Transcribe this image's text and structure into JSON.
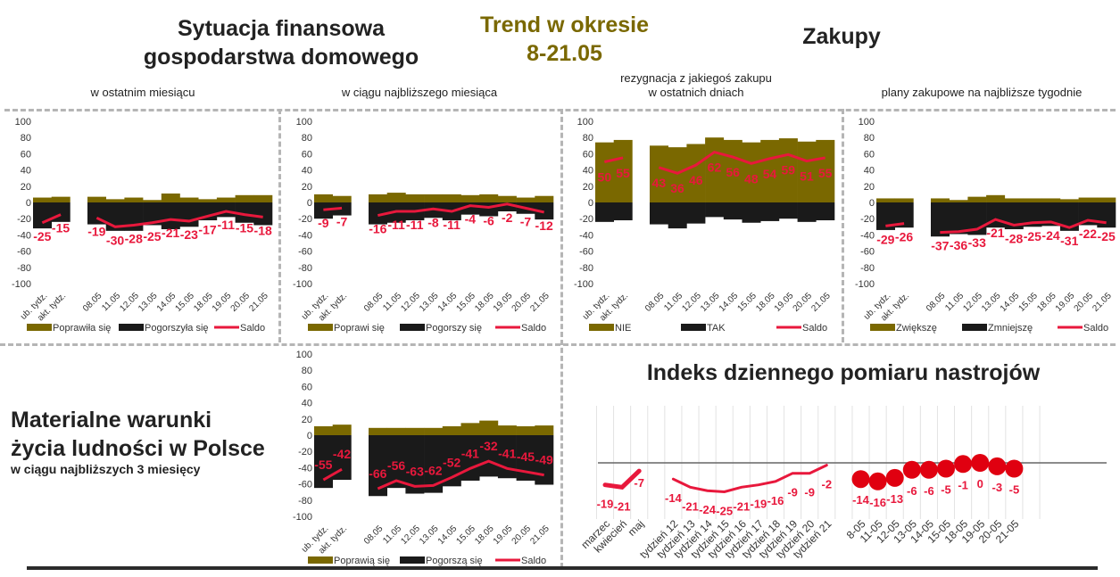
{
  "headers": {
    "finance_title": [
      "Sytuacja finansowa",
      "gospodarstwa domowego"
    ],
    "trend_title": [
      "Trend w okresie",
      "8-21.05"
    ],
    "purchases_title": "Zakupy",
    "material_title": [
      "Materialne warunki",
      "życia ludności w Polsce"
    ],
    "material_subtitle": "w ciągu najbliższych 3 miesięcy",
    "index_title": "Indeks dziennego pomiaru nastrojów"
  },
  "subtitles": [
    "w ostatnim miesiącu",
    "w ciągu najbliższego miesiąca",
    "rezygnacja z jakiegoś zakupu",
    "w ostatnich dniach",
    "plany zakupowe na najbliższe tygodnie"
  ],
  "colors": {
    "positive": "#7a6800",
    "negative": "#1a1a1a",
    "saldo": "#e8183c",
    "title": "#222222"
  },
  "chart_data": [
    {
      "type": "bar",
      "categories": [
        "ub. tydz.",
        "akt. tydz.",
        "08.05",
        "11.05",
        "12.05",
        "13.05",
        "14.05",
        "15.05",
        "18.05",
        "19.05",
        "20.05",
        "21.05"
      ],
      "ylim": [
        -100,
        100
      ],
      "yticks": [
        100,
        80,
        60,
        40,
        20,
        0,
        -20,
        -40,
        -60,
        -80,
        -100
      ],
      "series": [
        {
          "name": "Poprawiła się",
          "values": [
            6,
            7,
            7,
            4,
            6,
            3,
            11,
            6,
            4,
            6,
            9,
            9
          ]
        },
        {
          "name": "Pogorszyła się",
          "values": [
            -32,
            -24,
            -27,
            -35,
            -35,
            -28,
            -33,
            -30,
            -22,
            -18,
            -25,
            -28
          ]
        },
        {
          "name": "Saldo",
          "values": [
            -25,
            -15,
            -19,
            -30,
            -28,
            -25,
            -21,
            -23,
            -17,
            -11,
            -15,
            -18
          ]
        }
      ],
      "legend": "bottom"
    },
    {
      "type": "bar",
      "categories": [
        "ub. tydz.",
        "akt. tydz.",
        "08.05",
        "11.05",
        "12.05",
        "13.05",
        "14.05",
        "15.05",
        "18.05",
        "19.05",
        "20.05",
        "21.05"
      ],
      "ylim": [
        -100,
        100
      ],
      "yticks": [
        100,
        80,
        60,
        40,
        20,
        0,
        -20,
        -40,
        -60,
        -80,
        -100
      ],
      "series": [
        {
          "name": "Poprawi się",
          "values": [
            10,
            8,
            10,
            12,
            10,
            10,
            10,
            9,
            10,
            8,
            6,
            8
          ]
        },
        {
          "name": "Pogorszy się",
          "values": [
            -20,
            -16,
            -27,
            -25,
            -22,
            -19,
            -22,
            -15,
            -17,
            -11,
            -14,
            -21
          ]
        },
        {
          "name": "Saldo",
          "values": [
            -9,
            -7,
            -16,
            -11,
            -11,
            -8,
            -11,
            -4,
            -6,
            -2,
            -7,
            -12
          ]
        }
      ],
      "legend": "bottom"
    },
    {
      "type": "bar",
      "categories": [
        "ub. tydz.",
        "akt. tydz.",
        "08.05",
        "11.05",
        "12.05",
        "13.05",
        "14.05",
        "15.05",
        "18.05",
        "19.05",
        "20.05",
        "21.05"
      ],
      "ylim": [
        -100,
        100
      ],
      "yticks": [
        100,
        80,
        60,
        40,
        20,
        0,
        -20,
        -40,
        -60,
        -80,
        -100
      ],
      "series": [
        {
          "name": "NIE",
          "values": [
            74,
            77,
            70,
            68,
            72,
            80,
            77,
            74,
            77,
            79,
            75,
            77
          ]
        },
        {
          "name": "TAK",
          "values": [
            -24,
            -22,
            -27,
            -32,
            -26,
            -18,
            -21,
            -25,
            -23,
            -20,
            -24,
            -22
          ]
        },
        {
          "name": "Saldo",
          "values": [
            50,
            55,
            43,
            36,
            46,
            62,
            56,
            48,
            54,
            59,
            51,
            55
          ]
        }
      ],
      "legend": "bottom"
    },
    {
      "type": "bar",
      "categories": [
        "ub. tydz.",
        "akt. tydz.",
        "08.05",
        "11.05",
        "12.05",
        "13.05",
        "14.05",
        "15.05",
        "18.05",
        "19.05",
        "20.05",
        "21.05"
      ],
      "ylim": [
        -100,
        100
      ],
      "yticks": [
        100,
        80,
        60,
        40,
        20,
        0,
        -20,
        -40,
        -60,
        -80,
        -100
      ],
      "series": [
        {
          "name": "Zwiększę",
          "values": [
            5,
            5,
            5,
            3,
            7,
            9,
            5,
            5,
            5,
            4,
            6,
            6
          ]
        },
        {
          "name": "Zmniejszę",
          "values": [
            -34,
            -31,
            -42,
            -39,
            -40,
            -31,
            -33,
            -30,
            -29,
            -35,
            -28,
            -31
          ]
        },
        {
          "name": "Saldo",
          "values": [
            -29,
            -26,
            -37,
            -36,
            -33,
            -21,
            -28,
            -25,
            -24,
            -31,
            -22,
            -25
          ]
        }
      ],
      "legend": "bottom"
    },
    {
      "type": "bar",
      "categories": [
        "ub. tydz.",
        "akt. tydz.",
        "08.05",
        "11.05",
        "12.05",
        "13.05",
        "14.05",
        "15.05",
        "18.05",
        "19.05",
        "20.05",
        "21.05"
      ],
      "ylim": [
        -100,
        100
      ],
      "yticks": [
        100,
        80,
        60,
        40,
        20,
        0,
        -20,
        -40,
        -60,
        -80,
        -100
      ],
      "series": [
        {
          "name": "Poprawią się",
          "values": [
            11,
            13,
            9,
            9,
            9,
            9,
            11,
            15,
            18,
            12,
            11,
            12
          ]
        },
        {
          "name": "Pogorszą się",
          "values": [
            -65,
            -55,
            -75,
            -65,
            -72,
            -71,
            -63,
            -56,
            -51,
            -53,
            -56,
            -61
          ]
        },
        {
          "name": "Saldo",
          "values": [
            -55,
            -42,
            -66,
            -56,
            -63,
            -62,
            -52,
            -41,
            -32,
            -41,
            -45,
            -49
          ]
        }
      ],
      "legend": "bottom"
    },
    {
      "type": "line",
      "title": "Indeks dziennego pomiaru nastrojów",
      "groups": [
        {
          "style": "line",
          "categories": [
            "marzec",
            "kwiecień",
            "maj"
          ],
          "values": [
            -19,
            -21,
            -7
          ]
        },
        {
          "style": "line",
          "categories": [
            "tydzień 12",
            "tydzień 13",
            "tydzień 14",
            "tydzień 15",
            "tydzień 16",
            "tydzień 17",
            "tydzień 18",
            "tydzień 19",
            "tydzień 20",
            "tydzień 21"
          ],
          "values": [
            -14,
            -21,
            -24,
            -25,
            -21,
            -19,
            -16,
            -9,
            -9,
            -2
          ]
        },
        {
          "style": "dots",
          "categories": [
            "8-05",
            "11-05",
            "12-05",
            "13-05",
            "14-05",
            "15-05",
            "18-05",
            "19-05",
            "20-05",
            "21-05"
          ],
          "values": [
            -14,
            -16,
            -13,
            -6,
            -6,
            -5,
            -1,
            0,
            -3,
            -5
          ]
        }
      ],
      "grid": true
    }
  ]
}
